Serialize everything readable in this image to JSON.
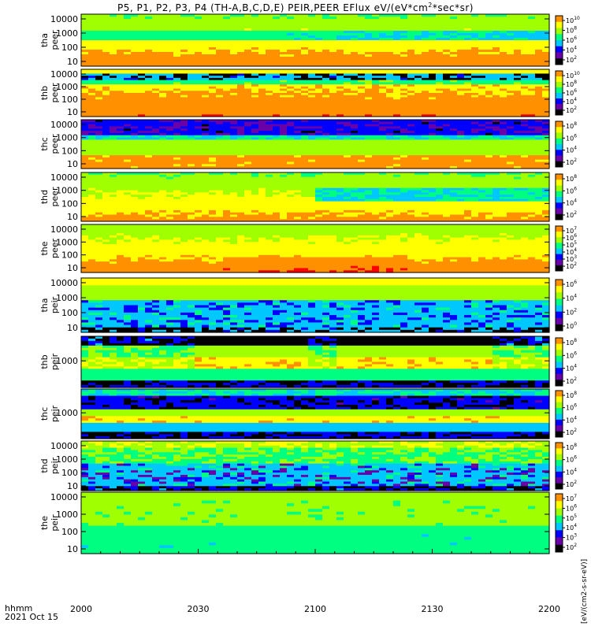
{
  "title_parts": [
    "P5, P1, P2, P3, P4 (TH-A,B,C,D,E) PEIR,PEER EFlux eV/(eV*cm",
    "2",
    "*sec*sr)"
  ],
  "footer": {
    "line1": "hhmm",
    "line2": "2021 Oct 15"
  },
  "colorbar_units": "[eV/(cm2-s-sr-eV)]",
  "colors": {
    "spectrum": [
      "#000000",
      "#6a00a8",
      "#0000ff",
      "#00c8ff",
      "#00ff80",
      "#a0ff00",
      "#ffff00",
      "#ff9000",
      "#ff0000"
    ]
  },
  "chart_data": {
    "type": "heatmap",
    "time_ticks": [
      "2000",
      "2030",
      "2100",
      "2130",
      "2200"
    ],
    "panels": [
      {
        "sc": "tha",
        "species": "peer",
        "yticks": [
          "10000",
          "1000",
          "100",
          "10"
        ],
        "cbar_ticks": [
          "10",
          "8",
          "6",
          "4",
          "2"
        ],
        "profile": "electron-a"
      },
      {
        "sc": "thb",
        "species": "peer",
        "yticks": [
          "10000",
          "1000",
          "100",
          "10"
        ],
        "cbar_ticks": [
          "10",
          "8",
          "6",
          "4",
          "2"
        ],
        "profile": "electron-b"
      },
      {
        "sc": "thc",
        "species": "peer",
        "yticks": [
          "10000",
          "1000",
          "100",
          "10"
        ],
        "cbar_ticks": [
          "8",
          "6",
          "4",
          "2"
        ],
        "profile": "electron-c"
      },
      {
        "sc": "thd",
        "species": "peer",
        "yticks": [
          "10000",
          "1000",
          "100",
          "10"
        ],
        "cbar_ticks": [
          "8",
          "6",
          "4",
          "2"
        ],
        "profile": "electron-d"
      },
      {
        "sc": "the",
        "species": "peer",
        "yticks": [
          "10000",
          "1000",
          "100",
          "10"
        ],
        "cbar_ticks": [
          "7",
          "6",
          "5",
          "4",
          "3",
          "2"
        ],
        "profile": "electron-e"
      },
      {
        "sc": "tha",
        "species": "peir",
        "yticks": [
          "10000",
          "1000",
          "100",
          "10"
        ],
        "cbar_ticks": [
          "6",
          "4",
          "2",
          "0"
        ],
        "profile": "ion-a"
      },
      {
        "sc": "thb",
        "species": "peir",
        "yticks": [
          "1000"
        ],
        "cbar_ticks": [
          "8",
          "6",
          "4",
          "2"
        ],
        "profile": "ion-b"
      },
      {
        "sc": "thc",
        "species": "peir",
        "yticks": [
          "1000"
        ],
        "cbar_ticks": [
          "8",
          "6",
          "4",
          "2"
        ],
        "profile": "ion-c"
      },
      {
        "sc": "thd",
        "species": "peir",
        "yticks": [
          "10000",
          "1000",
          "100",
          "10"
        ],
        "cbar_ticks": [
          "8",
          "6",
          "4",
          "2"
        ],
        "profile": "ion-d"
      },
      {
        "sc": "the",
        "species": "peir",
        "yticks": [
          "10000",
          "1000",
          "100",
          "10"
        ],
        "cbar_ticks": [
          "7",
          "6",
          "5",
          "4",
          "3",
          "2"
        ],
        "profile": "ion-e"
      }
    ]
  }
}
